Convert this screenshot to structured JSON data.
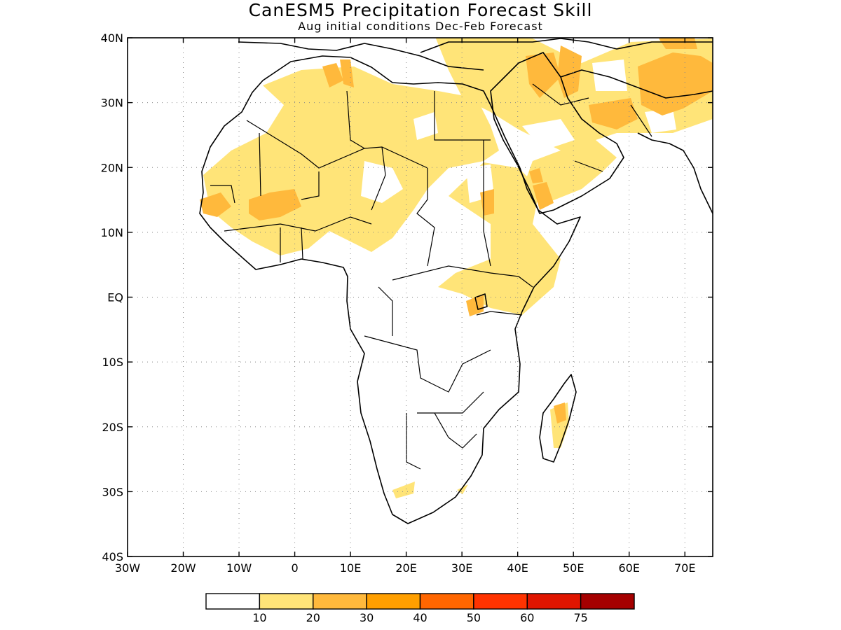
{
  "header": {
    "title": "CanESM5 Precipitation Forecast Skill",
    "subtitle": "Aug initial conditions   Dec-Feb Forecast"
  },
  "map": {
    "lon_range": [
      -30,
      75
    ],
    "lat_range": [
      -40,
      40
    ],
    "x_ticks": [
      {
        "value": -30,
        "label": "30W"
      },
      {
        "value": -20,
        "label": "20W"
      },
      {
        "value": -10,
        "label": "10W"
      },
      {
        "value": 0,
        "label": "0"
      },
      {
        "value": 10,
        "label": "10E"
      },
      {
        "value": 20,
        "label": "20E"
      },
      {
        "value": 30,
        "label": "30E"
      },
      {
        "value": 40,
        "label": "40E"
      },
      {
        "value": 50,
        "label": "50E"
      },
      {
        "value": 60,
        "label": "60E"
      },
      {
        "value": 70,
        "label": "70E"
      }
    ],
    "y_ticks": [
      {
        "value": 40,
        "label": "40N"
      },
      {
        "value": 30,
        "label": "30N"
      },
      {
        "value": 20,
        "label": "20N"
      },
      {
        "value": 10,
        "label": "10N"
      },
      {
        "value": 0,
        "label": "EQ"
      },
      {
        "value": -10,
        "label": "10S"
      },
      {
        "value": -20,
        "label": "20S"
      },
      {
        "value": -30,
        "label": "30S"
      },
      {
        "value": -40,
        "label": "40S"
      }
    ]
  },
  "legend": {
    "colors": [
      "#ffffff",
      "#ffe478",
      "#ffb93c",
      "#ff9f00",
      "#ff6600",
      "#ff3300",
      "#e01500",
      "#a50000"
    ],
    "labels": [
      "10",
      "20",
      "30",
      "40",
      "50",
      "60",
      "75"
    ]
  }
}
